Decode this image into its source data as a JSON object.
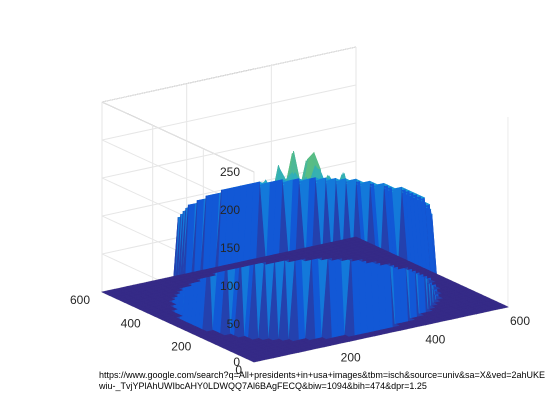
{
  "chart_data": {
    "type": "surface",
    "title": "",
    "xlabel": "",
    "ylabel": "",
    "zlabel": "",
    "grid": true,
    "colormap": "parula",
    "colors": {
      "low": "#352a87",
      "mid_low": "#0f5cdd",
      "mid": "#1aa8d6",
      "mid_high": "#6dc36b",
      "high": "#f9fb0e",
      "axis": "#262626",
      "grid": "#e6e6e6"
    },
    "x_range": [
      0,
      600
    ],
    "y_range": [
      0,
      600
    ],
    "z_range": [
      0,
      250
    ],
    "x_ticks": [
      200,
      400,
      600
    ],
    "y_ticks": [
      0,
      200,
      400,
      600
    ],
    "z_ticks": [
      0,
      50,
      100,
      150,
      200,
      250
    ],
    "x_tick_labels": [
      "200",
      "400",
      "600"
    ],
    "y_tick_labels": [
      "0",
      "200",
      "400",
      "600"
    ],
    "z_tick_labels": [
      "0",
      "50",
      "100",
      "150",
      "200",
      "250"
    ],
    "surface": {
      "floor_z": 0,
      "disk_z": 110,
      "disk_center": [
        300,
        300
      ],
      "disk_radius": 260,
      "peak_z": 240
    },
    "annotation": "https://www.google.com/search?q=All+presidents+in+usa+images&tbm=isch&source=univ&sa=X&ved=2ahUKEwiu-_TvjYPlAhUWIbcAHY0LDWQQ7Al6BAgFECQ&biw=1094&bih=474&dpr=1.25"
  }
}
